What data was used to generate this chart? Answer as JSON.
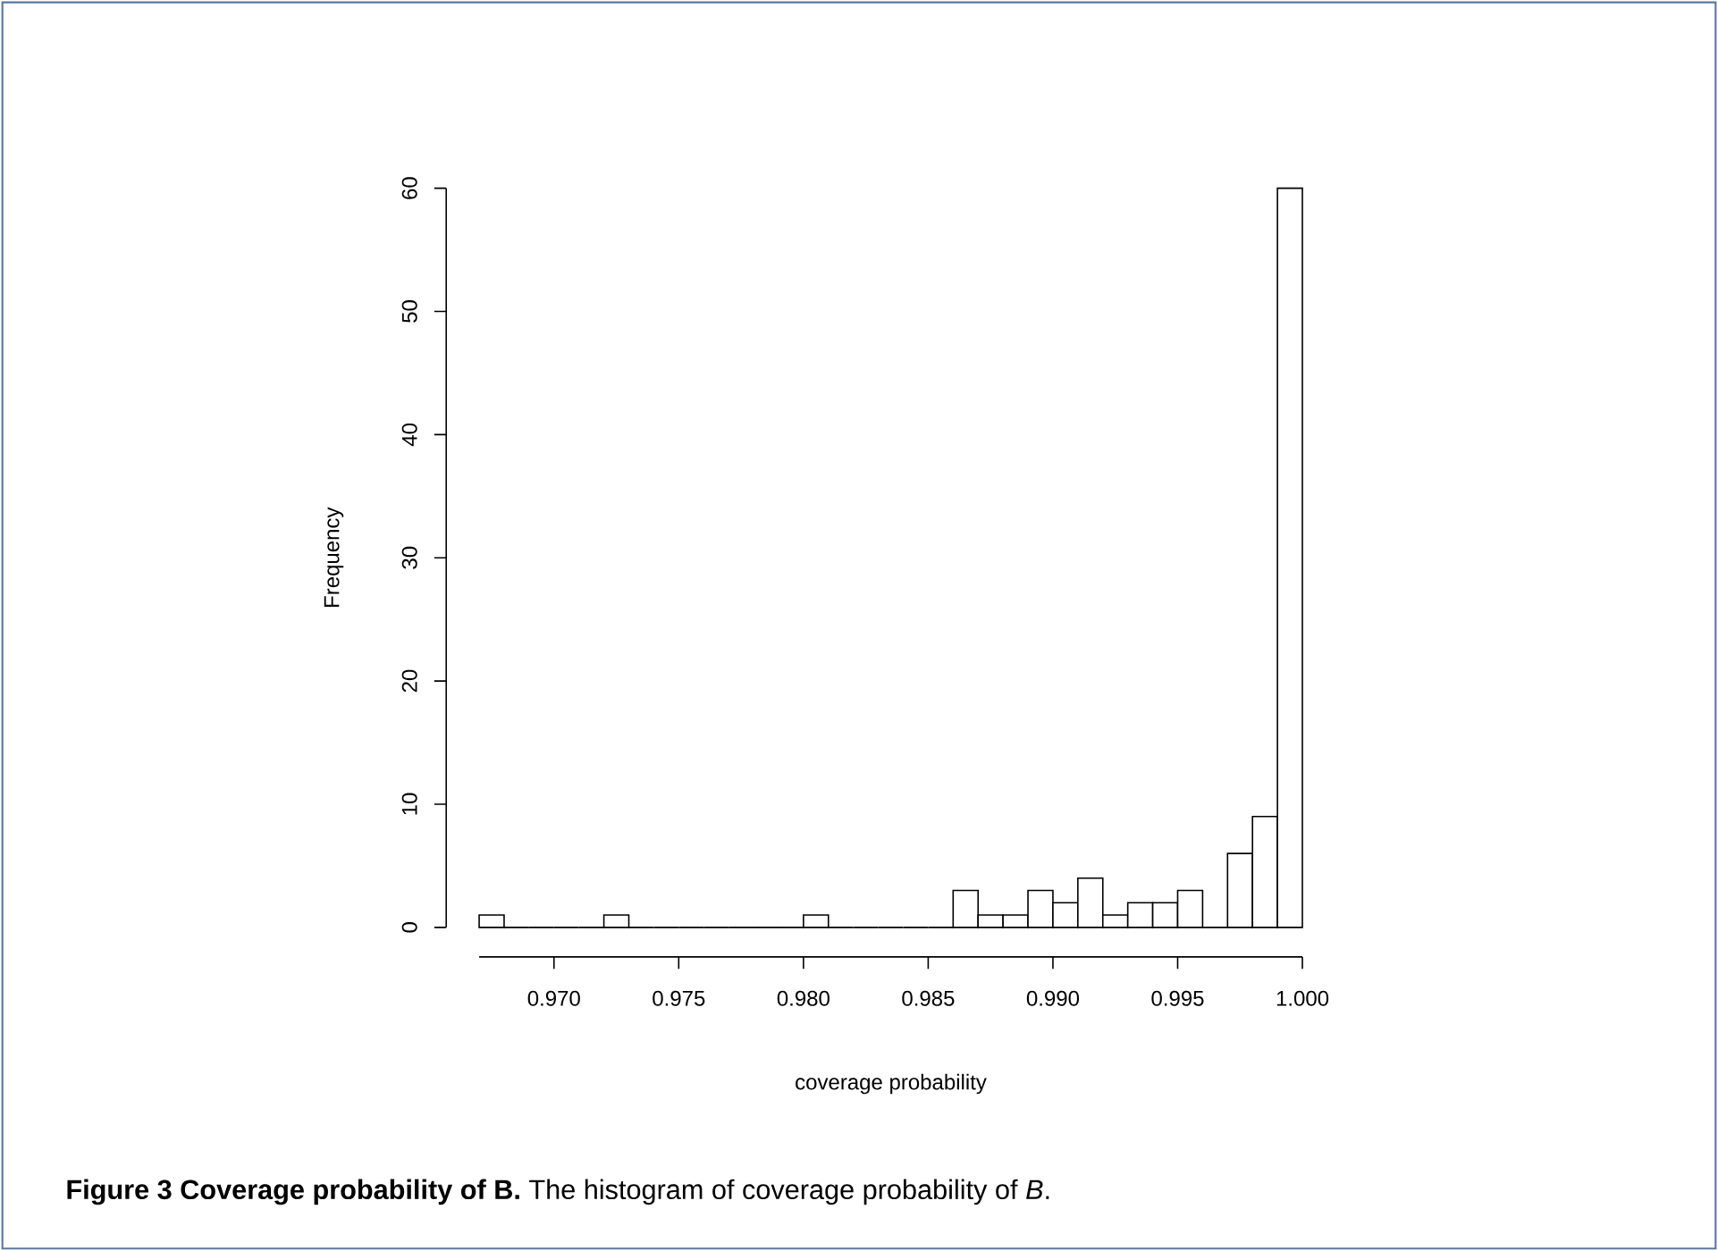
{
  "chart_data": {
    "type": "histogram",
    "xlabel": "coverage probability",
    "ylabel": "Frequency",
    "bins": [
      0.967,
      0.968,
      0.969,
      0.97,
      0.971,
      0.972,
      0.973,
      0.974,
      0.975,
      0.976,
      0.977,
      0.978,
      0.979,
      0.98,
      0.981,
      0.982,
      0.983,
      0.984,
      0.985,
      0.986,
      0.987,
      0.988,
      0.989,
      0.99,
      0.991,
      0.992,
      0.993,
      0.994,
      0.995,
      0.996,
      0.997,
      0.998,
      0.999,
      1.0
    ],
    "values": [
      1,
      0,
      0,
      0,
      0,
      1,
      0,
      0,
      0,
      0,
      0,
      0,
      0,
      1,
      0,
      0,
      0,
      0,
      0,
      3,
      1,
      1,
      3,
      2,
      4,
      1,
      2,
      2,
      3,
      0,
      6,
      9,
      60
    ],
    "xlim": [
      0.967,
      1.0
    ],
    "ylim": [
      0,
      60
    ],
    "xticks": [
      {
        "value": 0.97,
        "label": "0.970"
      },
      {
        "value": 0.975,
        "label": "0.975"
      },
      {
        "value": 0.98,
        "label": "0.980"
      },
      {
        "value": 0.985,
        "label": "0.985"
      },
      {
        "value": 0.99,
        "label": "0.990"
      },
      {
        "value": 0.995,
        "label": "0.995"
      },
      {
        "value": 1.0,
        "label": "1.000"
      }
    ],
    "yticks": [
      0,
      10,
      20,
      30,
      40,
      50,
      60
    ],
    "annotations": [
      "**Figure 3 Coverage probability of B.** The histogram of coverage probability of *B*."
    ]
  }
}
